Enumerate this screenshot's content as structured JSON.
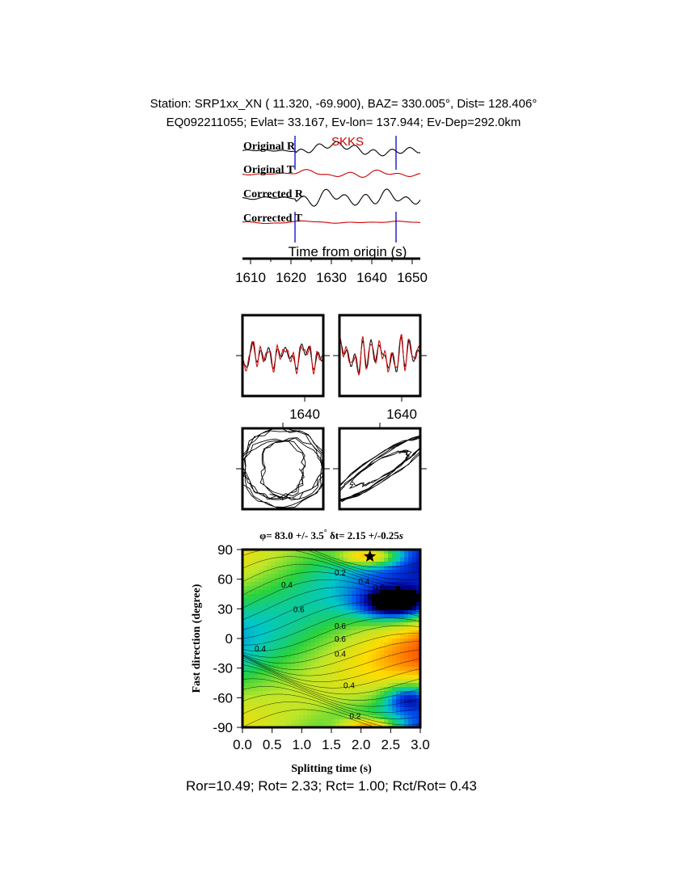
{
  "header": {
    "line1": "Station: SRP1xx_XN (  11.320,  -69.900), BAZ=  330.005°, Dist=  128.406°",
    "line2": "EQ092211055; Evlat=  33.167, Ev-lon= 137.944; Ev-Dep=292.0km"
  },
  "footer": {
    "text": "Ror=10.49; Rot= 2.33; Rct= 1.00; Rct/Rot= 0.43"
  },
  "chart_data": [
    {
      "type": "line",
      "panel": "waveforms",
      "traces": [
        {
          "label": "Original R",
          "color": "#000000"
        },
        {
          "label": "Original T",
          "color": "#cc0000"
        },
        {
          "label": "Corrected R",
          "color": "#000000"
        },
        {
          "label": "Corrected T",
          "color": "#cc0000"
        }
      ],
      "phase_label": "SKKS",
      "phase_color": "#cc0000",
      "xlabel": "Time from origin (s)",
      "x_ticks": [
        1610,
        1620,
        1630,
        1640,
        1650
      ],
      "xlim": [
        1608,
        1652
      ],
      "window_markers": [
        1621,
        1646
      ],
      "marker_color": "#0000cc"
    },
    {
      "type": "line",
      "panel": "waveform-comparison",
      "panels": 2,
      "x_tick_label": "1640",
      "colors": [
        "#000000",
        "#cc0000"
      ]
    },
    {
      "type": "line",
      "panel": "particle-motion",
      "panels": 2,
      "color": "#000000"
    },
    {
      "type": "heatmap",
      "panel": "energy-grid",
      "title_parts": {
        "phi_symbol": "φ",
        "phi_text": "= 83.0 +/- 3.5",
        "degree": "°",
        "dt_symbol": "δ",
        "dt_text": "t= 2.15 +/-0.25",
        "unit": "s"
      },
      "xlabel": "Splitting time (s)",
      "ylabel": "Fast direction (degree)",
      "xlim": [
        0.0,
        3.0
      ],
      "ylim": [
        -90,
        90
      ],
      "x_ticks": [
        "0.0",
        "0.5",
        "1.0",
        "1.5",
        "2.0",
        "2.5",
        "3.0"
      ],
      "y_ticks": [
        "90",
        "60",
        "30",
        "0",
        "-30",
        "-60",
        "-90"
      ],
      "best_fit": {
        "dt": 2.15,
        "phi": 83.0
      },
      "contour_labels": [
        {
          "text": "0.2",
          "dt": 1.65,
          "phi": 67
        },
        {
          "text": "0.4",
          "dt": 2.05,
          "phi": 58
        },
        {
          "text": "0.6",
          "dt": 2.3,
          "phi": 52
        },
        {
          "text": "0.8",
          "dt": 2.2,
          "phi": 43
        },
        {
          "text": "0.4",
          "dt": 0.75,
          "phi": 55
        },
        {
          "text": "0.6",
          "dt": 0.95,
          "phi": 30
        },
        {
          "text": "0.6",
          "dt": 1.65,
          "phi": 13
        },
        {
          "text": "0.6",
          "dt": 1.65,
          "phi": 0
        },
        {
          "text": "0.4",
          "dt": 1.65,
          "phi": -15
        },
        {
          "text": "0.4",
          "dt": 0.3,
          "phi": -10
        },
        {
          "text": "0.4",
          "dt": 1.8,
          "phi": -47
        },
        {
          "text": "0.2",
          "dt": 1.9,
          "phi": -78
        }
      ]
    }
  ]
}
